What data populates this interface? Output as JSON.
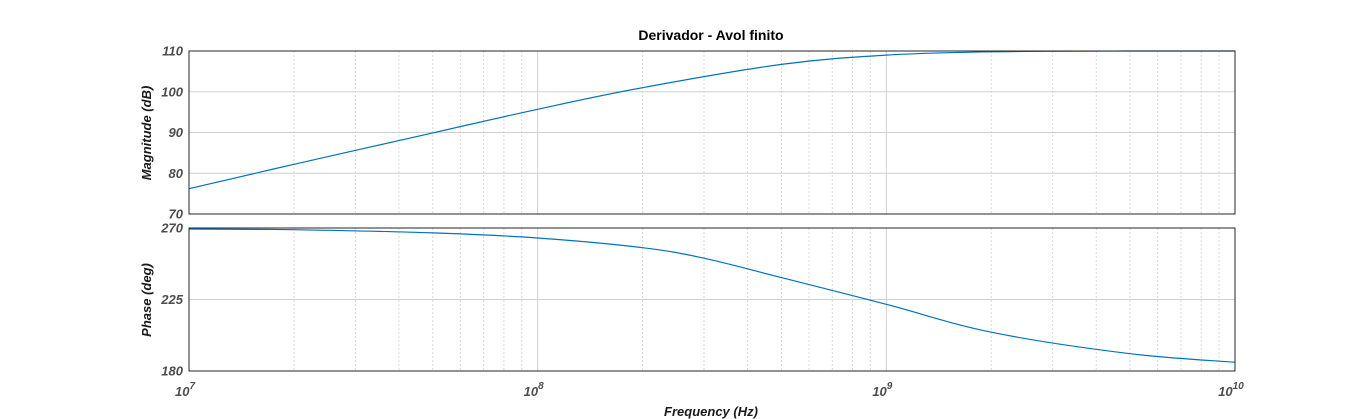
{
  "chart_data": {
    "type": "line",
    "title": "Derivador - Avol finito",
    "xlabel": "Frequency  (Hz)",
    "xscale": "log",
    "xlim": [
      10000000,
      10000000000
    ],
    "x_ticks": [
      {
        "base": "10",
        "exp": "7"
      },
      {
        "base": "10",
        "exp": "8"
      },
      {
        "base": "10",
        "exp": "9"
      },
      {
        "base": "10",
        "exp": "10"
      }
    ],
    "grid": true,
    "line_color": "#0072bd",
    "panels": [
      {
        "ylabel": "Magnitude (dB)",
        "ylim": [
          70,
          110
        ],
        "y_ticks": [
          "70",
          "80",
          "90",
          "100",
          "110"
        ],
        "series": [
          {
            "x": [
              10000000,
              20000000,
              50000000,
              100000000,
              200000000,
              500000000,
              1000000000,
              2000000000,
              5000000000,
              10000000000
            ],
            "y": [
              76.2,
              82.2,
              89.9,
              95.7,
              101.0,
              106.7,
              109.0,
              109.8,
              110.0,
              110.0
            ]
          }
        ]
      },
      {
        "ylabel": "Phase (deg)",
        "ylim": [
          180,
          270
        ],
        "y_ticks": [
          "180",
          "225",
          "270"
        ],
        "series": [
          {
            "x": [
              10000000,
              20000000,
              50000000,
              100000000,
              200000000,
              300000000,
              500000000,
              1000000000,
              2000000000,
              5000000000,
              10000000000
            ],
            "y": [
              269.4,
              268.9,
              266.9,
              263.7,
              257.6,
              251.0,
              238.8,
              222.0,
              204.4,
              190.9,
              185.5
            ]
          }
        ]
      }
    ]
  }
}
